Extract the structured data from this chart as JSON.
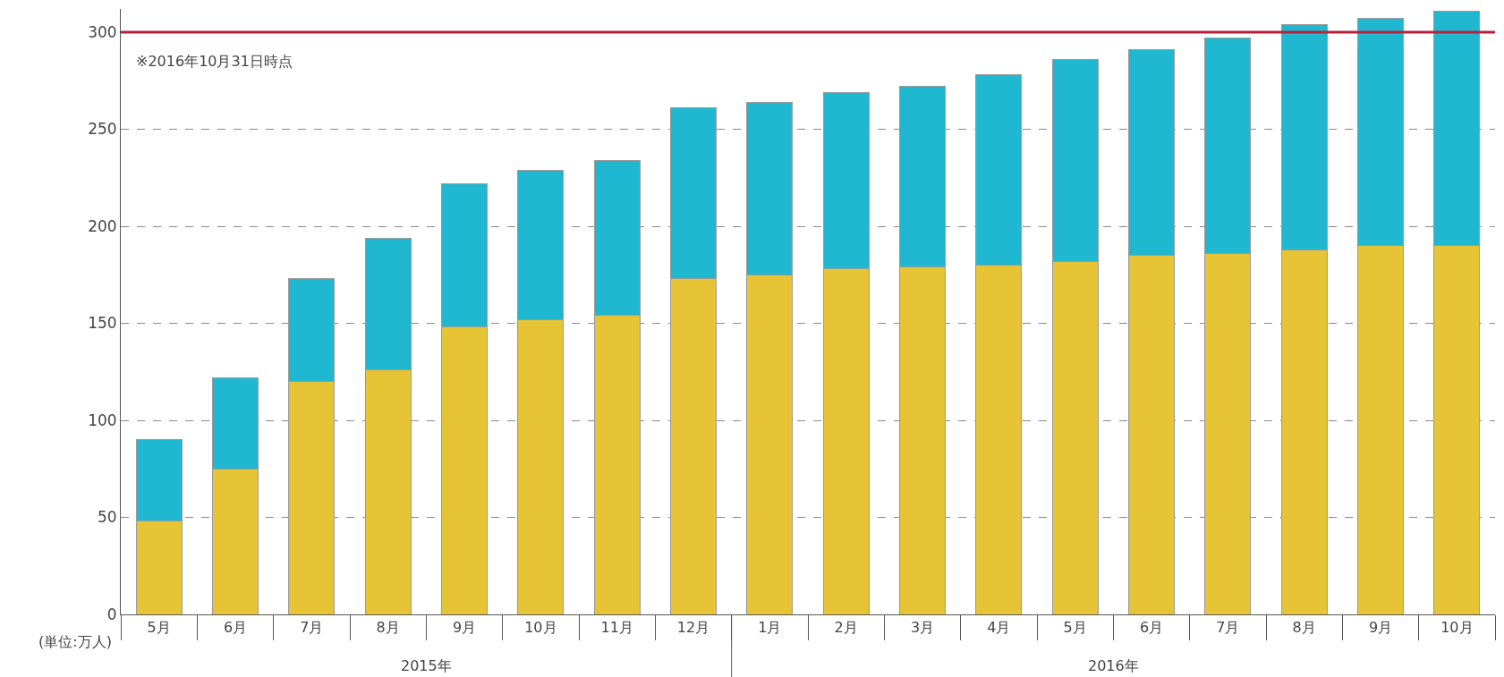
{
  "chart_data": {
    "type": "bar",
    "stacked": true,
    "categories": [
      "5月",
      "6月",
      "7月",
      "8月",
      "9月",
      "10月",
      "11月",
      "12月",
      "1月",
      "2月",
      "3月",
      "4月",
      "5月",
      "6月",
      "7月",
      "8月",
      "9月",
      "10月"
    ],
    "series": [
      {
        "color": "#e6c435",
        "values": [
          48,
          75,
          120,
          126,
          148,
          152,
          154,
          173,
          175,
          178,
          179,
          180,
          182,
          185,
          186,
          188,
          190,
          190
        ]
      },
      {
        "color": "#20b8d0",
        "values": [
          42,
          47,
          53,
          68,
          74,
          77,
          80,
          88,
          89,
          91,
          93,
          98,
          104,
          106,
          111,
          116,
          117,
          121
        ]
      }
    ],
    "ylim": [
      0,
      312
    ],
    "yticks": [
      0,
      50,
      100,
      150,
      200,
      250,
      300
    ],
    "grid": "y",
    "ref_lines": [
      {
        "axis": "y",
        "value": 300,
        "color": "#b5203a"
      }
    ],
    "annotations": [
      "※2016年10月31日時点",
      "(単位:万人)",
      "2015年",
      "2016年"
    ]
  }
}
